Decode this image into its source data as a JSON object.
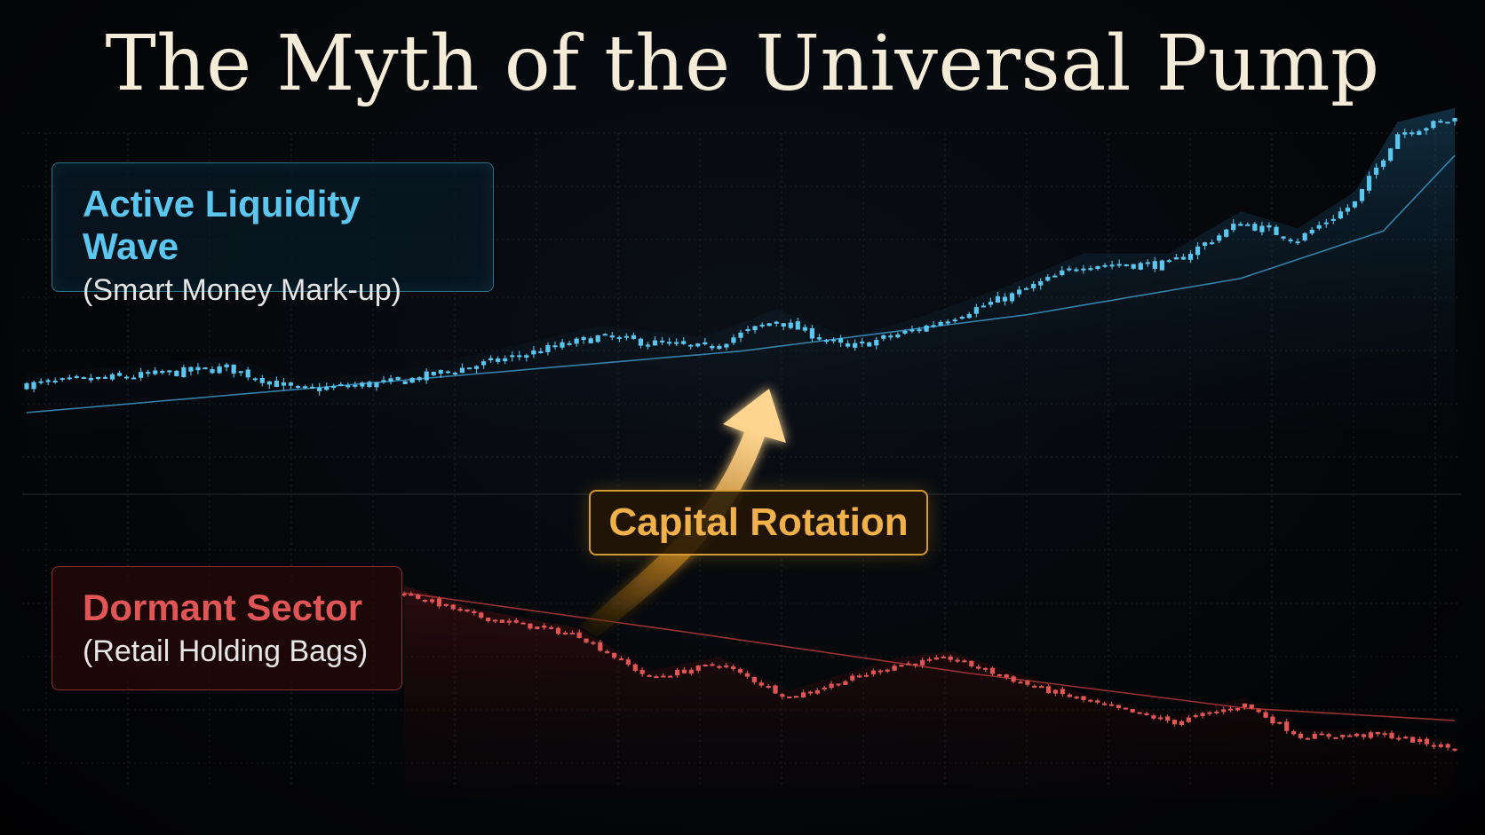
{
  "title": "The Myth of the Universal Pump",
  "labels": {
    "active_main": "Active Liquidity Wave",
    "active_sub": "(Smart Money Mark-up)",
    "dormant_main": "Dormant Sector",
    "dormant_sub": "(Retail Holding Bags)",
    "rotation": "Capital Rotation"
  },
  "colors": {
    "active": "#5cc6ee",
    "dormant": "#e05656",
    "rotation": "#f0b04a",
    "background": "#05070a"
  },
  "chart_data": [
    {
      "type": "candlestick",
      "name": "Active Liquidity Wave",
      "trend": "up",
      "x_range": [
        0,
        200
      ],
      "y_range": [
        0,
        100
      ],
      "price_path": [
        [
          0,
          10
        ],
        [
          15,
          13
        ],
        [
          28,
          16
        ],
        [
          38,
          8
        ],
        [
          52,
          11
        ],
        [
          65,
          18
        ],
        [
          80,
          27
        ],
        [
          95,
          23
        ],
        [
          105,
          33
        ],
        [
          115,
          23
        ],
        [
          125,
          30
        ],
        [
          138,
          42
        ],
        [
          148,
          53
        ],
        [
          160,
          53
        ],
        [
          170,
          68
        ],
        [
          178,
          62
        ],
        [
          186,
          75
        ],
        [
          192,
          100
        ],
        [
          200,
          105
        ]
      ],
      "moving_average": [
        [
          0,
          0
        ],
        [
          100,
          22
        ],
        [
          140,
          35
        ],
        [
          170,
          48
        ],
        [
          190,
          65
        ],
        [
          200,
          92
        ]
      ],
      "grid": true
    },
    {
      "type": "candlestick",
      "name": "Dormant Sector",
      "trend": "down",
      "x_range": [
        0,
        150
      ],
      "y_range": [
        0,
        100
      ],
      "price_path": [
        [
          0,
          100
        ],
        [
          10,
          87
        ],
        [
          25,
          76
        ],
        [
          35,
          52
        ],
        [
          45,
          60
        ],
        [
          55,
          41
        ],
        [
          70,
          59
        ],
        [
          78,
          63
        ],
        [
          90,
          47
        ],
        [
          100,
          36
        ],
        [
          110,
          27
        ],
        [
          120,
          37
        ],
        [
          128,
          19
        ],
        [
          140,
          20
        ],
        [
          150,
          12
        ]
      ],
      "moving_average": [
        [
          0,
          100
        ],
        [
          40,
          78
        ],
        [
          80,
          55
        ],
        [
          120,
          35
        ],
        [
          150,
          28
        ]
      ],
      "grid": true
    }
  ]
}
